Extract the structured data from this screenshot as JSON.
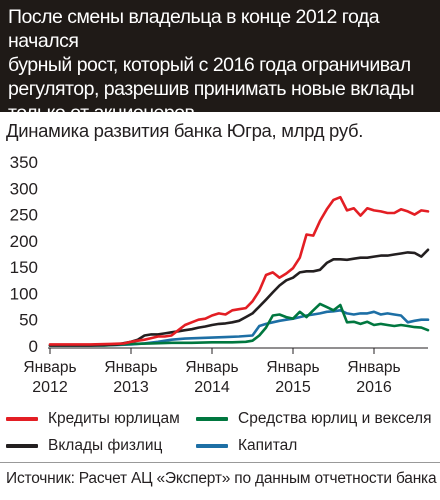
{
  "header": {
    "text": "После смены владельца в конце 2012 года начался\nбурный рост, который с 2016 года ограничивал\nрегулятор, разрешив принимать новые вклады\nтолько от акционеров"
  },
  "source": "Источник: Расчет АЦ «Эксперт» по данным отчетности банка",
  "chart_data": {
    "type": "line",
    "title": "Динамика развития банка Югра, млрд руб.",
    "xlabel": "",
    "ylabel": "",
    "ylim": [
      0,
      350
    ],
    "yticks": [
      0,
      50,
      100,
      150,
      200,
      250,
      300,
      350
    ],
    "xlim": [
      0,
      56
    ],
    "xticks": [
      {
        "x": 0,
        "label_month": "Январь",
        "label_year": "2012"
      },
      {
        "x": 12,
        "label_month": "Январь",
        "label_year": "2013"
      },
      {
        "x": 24,
        "label_month": "Январь",
        "label_year": "2014"
      },
      {
        "x": 36,
        "label_month": "Январь",
        "label_year": "2015"
      },
      {
        "x": 48,
        "label_month": "Январь",
        "label_year": "2016"
      }
    ],
    "grid": false,
    "series": [
      {
        "name": "Кредиты юрлицам",
        "color": "#e31e24",
        "points": [
          [
            0,
            3
          ],
          [
            3,
            3
          ],
          [
            6,
            3
          ],
          [
            9,
            4
          ],
          [
            11,
            5
          ],
          [
            12,
            8
          ],
          [
            13,
            10
          ],
          [
            14,
            12
          ],
          [
            15,
            15
          ],
          [
            16,
            18
          ],
          [
            17,
            18
          ],
          [
            18,
            20
          ],
          [
            19,
            30
          ],
          [
            20,
            40
          ],
          [
            21,
            45
          ],
          [
            22,
            50
          ],
          [
            23,
            52
          ],
          [
            24,
            58
          ],
          [
            25,
            62
          ],
          [
            26,
            60
          ],
          [
            27,
            68
          ],
          [
            28,
            70
          ],
          [
            29,
            72
          ],
          [
            30,
            85
          ],
          [
            31,
            105
          ],
          [
            32,
            135
          ],
          [
            33,
            140
          ],
          [
            34,
            130
          ],
          [
            35,
            138
          ],
          [
            36,
            148
          ],
          [
            37,
            168
          ],
          [
            38,
            212
          ],
          [
            39,
            210
          ],
          [
            40,
            238
          ],
          [
            41,
            260
          ],
          [
            42,
            278
          ],
          [
            43,
            283
          ],
          [
            44,
            258
          ],
          [
            45,
            262
          ],
          [
            46,
            248
          ],
          [
            47,
            262
          ],
          [
            48,
            258
          ],
          [
            49,
            256
          ],
          [
            50,
            253
          ],
          [
            51,
            253
          ],
          [
            52,
            260
          ],
          [
            53,
            256
          ],
          [
            54,
            250
          ],
          [
            55,
            258
          ],
          [
            56,
            256
          ]
        ]
      },
      {
        "name": "Вклады физлиц",
        "color": "#231f20",
        "points": [
          [
            0,
            1
          ],
          [
            2,
            1
          ],
          [
            4,
            1
          ],
          [
            6,
            1
          ],
          [
            8,
            2
          ],
          [
            10,
            3
          ],
          [
            12,
            8
          ],
          [
            13,
            12
          ],
          [
            14,
            20
          ],
          [
            15,
            22
          ],
          [
            16,
            22
          ],
          [
            17,
            24
          ],
          [
            18,
            26
          ],
          [
            19,
            28
          ],
          [
            20,
            30
          ],
          [
            21,
            32
          ],
          [
            22,
            35
          ],
          [
            23,
            37
          ],
          [
            24,
            40
          ],
          [
            25,
            42
          ],
          [
            26,
            43
          ],
          [
            27,
            45
          ],
          [
            28,
            48
          ],
          [
            29,
            55
          ],
          [
            30,
            62
          ],
          [
            31,
            75
          ],
          [
            32,
            88
          ],
          [
            33,
            102
          ],
          [
            34,
            115
          ],
          [
            35,
            125
          ],
          [
            36,
            130
          ],
          [
            37,
            140
          ],
          [
            38,
            142
          ],
          [
            39,
            142
          ],
          [
            40,
            145
          ],
          [
            41,
            158
          ],
          [
            42,
            165
          ],
          [
            43,
            165
          ],
          [
            44,
            164
          ],
          [
            45,
            166
          ],
          [
            46,
            168
          ],
          [
            47,
            168
          ],
          [
            48,
            170
          ],
          [
            49,
            172
          ],
          [
            50,
            172
          ],
          [
            51,
            174
          ],
          [
            52,
            176
          ],
          [
            53,
            178
          ],
          [
            54,
            177
          ],
          [
            55,
            170
          ],
          [
            56,
            183
          ]
        ]
      },
      {
        "name": "Средства юрлиц и векселя",
        "color": "#00773f",
        "points": [
          [
            0,
            1
          ],
          [
            4,
            1
          ],
          [
            8,
            1
          ],
          [
            12,
            4
          ],
          [
            15,
            5
          ],
          [
            18,
            6
          ],
          [
            21,
            6
          ],
          [
            24,
            7
          ],
          [
            27,
            7
          ],
          [
            29,
            8
          ],
          [
            30,
            10
          ],
          [
            31,
            20
          ],
          [
            32,
            35
          ],
          [
            33,
            58
          ],
          [
            34,
            60
          ],
          [
            35,
            55
          ],
          [
            36,
            52
          ],
          [
            37,
            65
          ],
          [
            38,
            55
          ],
          [
            39,
            68
          ],
          [
            40,
            80
          ],
          [
            41,
            74
          ],
          [
            42,
            68
          ],
          [
            43,
            78
          ],
          [
            44,
            45
          ],
          [
            45,
            46
          ],
          [
            46,
            42
          ],
          [
            47,
            46
          ],
          [
            48,
            40
          ],
          [
            49,
            42
          ],
          [
            50,
            40
          ],
          [
            51,
            38
          ],
          [
            52,
            40
          ],
          [
            53,
            38
          ],
          [
            54,
            36
          ],
          [
            55,
            35
          ],
          [
            56,
            30
          ]
        ]
      },
      {
        "name": "Капитал",
        "color": "#1d6fa5",
        "points": [
          [
            0,
            1
          ],
          [
            4,
            1
          ],
          [
            8,
            1
          ],
          [
            12,
            3
          ],
          [
            14,
            5
          ],
          [
            16,
            8
          ],
          [
            18,
            12
          ],
          [
            20,
            14
          ],
          [
            22,
            15
          ],
          [
            24,
            16
          ],
          [
            26,
            17
          ],
          [
            28,
            18
          ],
          [
            30,
            20
          ],
          [
            31,
            38
          ],
          [
            32,
            42
          ],
          [
            33,
            45
          ],
          [
            34,
            48
          ],
          [
            35,
            50
          ],
          [
            36,
            52
          ],
          [
            37,
            55
          ],
          [
            38,
            58
          ],
          [
            39,
            60
          ],
          [
            40,
            62
          ],
          [
            41,
            65
          ],
          [
            42,
            66
          ],
          [
            43,
            68
          ],
          [
            44,
            62
          ],
          [
            45,
            60
          ],
          [
            46,
            62
          ],
          [
            47,
            62
          ],
          [
            48,
            65
          ],
          [
            49,
            60
          ],
          [
            50,
            62
          ],
          [
            51,
            60
          ],
          [
            52,
            58
          ],
          [
            53,
            45
          ],
          [
            54,
            48
          ],
          [
            55,
            50
          ],
          [
            56,
            50
          ]
        ]
      }
    ],
    "legend_position": "bottom"
  }
}
